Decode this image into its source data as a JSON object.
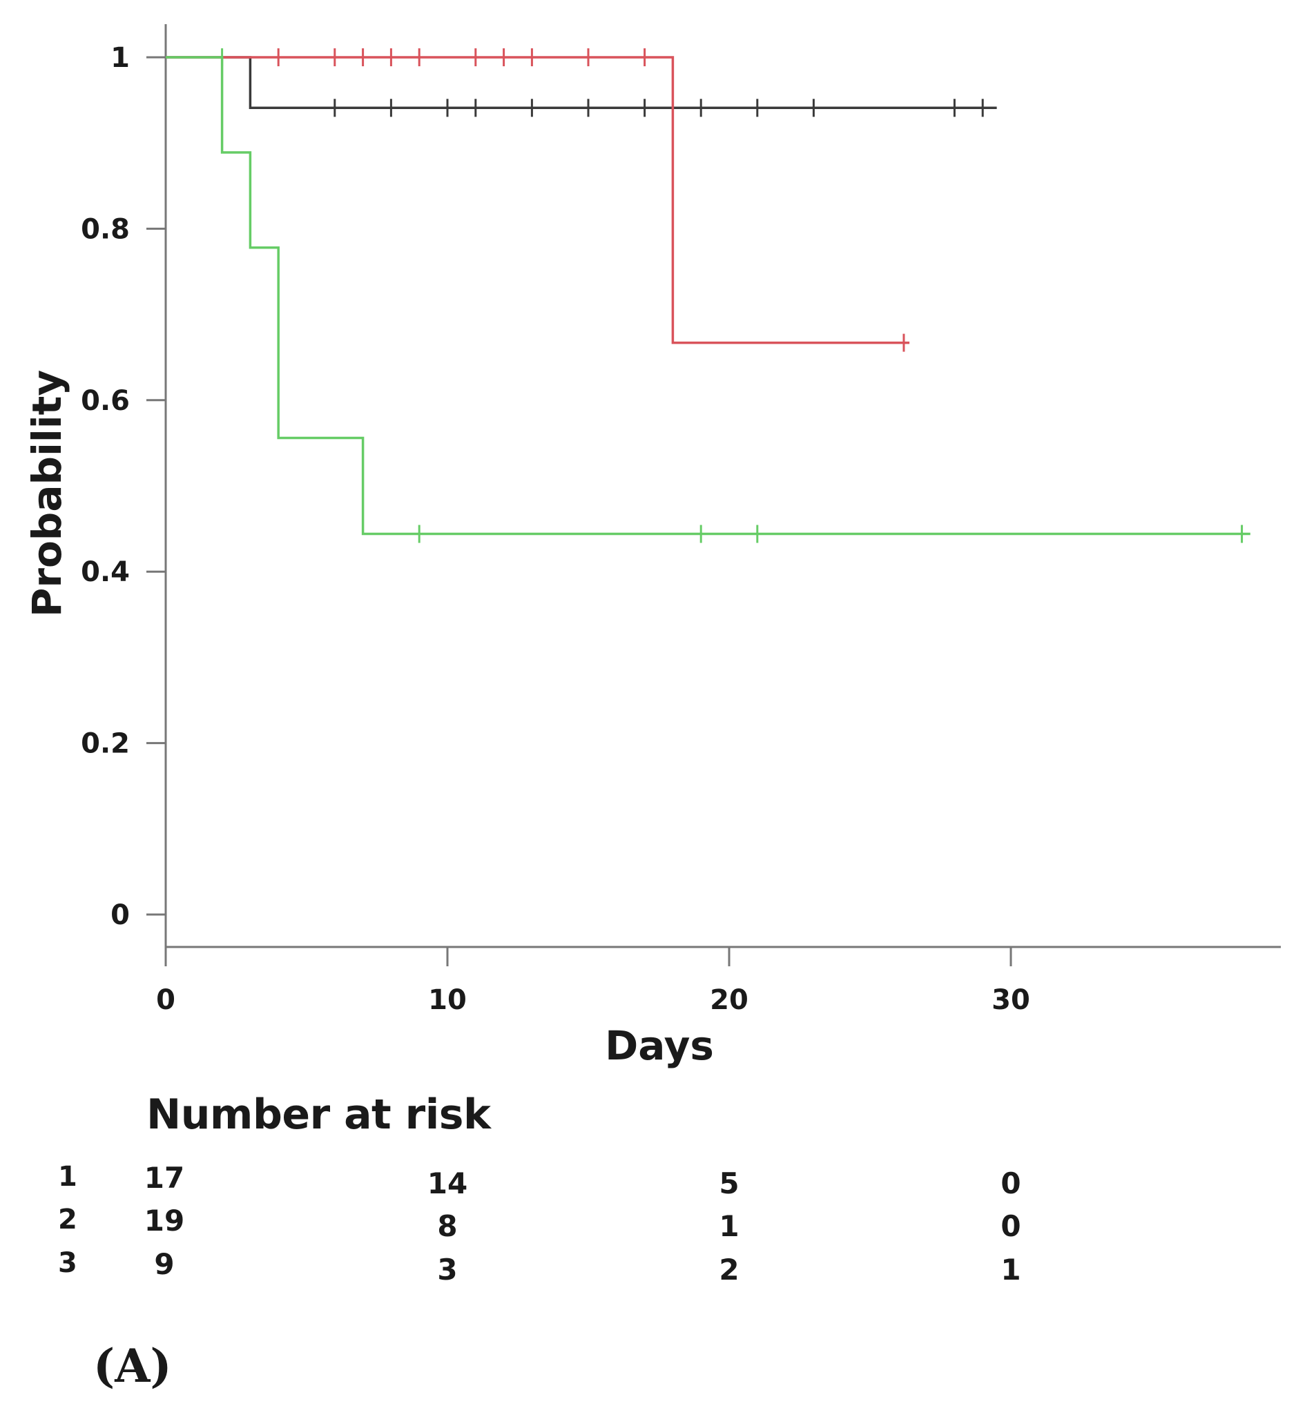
{
  "chart_data": {
    "type": "line",
    "subtype": "kaplan-meier step",
    "xlabel": "Days",
    "ylabel": "Probability",
    "xlim": [
      0,
      39
    ],
    "ylim": [
      0,
      1
    ],
    "x_ticks": [
      0,
      10,
      20,
      30
    ],
    "y_ticks": [
      0,
      0.2,
      0.4,
      0.6,
      0.8,
      1
    ],
    "x_tick_labels": [
      "0",
      "10",
      "20",
      "30"
    ],
    "y_tick_labels": [
      "0",
      "0.2",
      "0.4",
      "0.6",
      "0.8",
      "1"
    ],
    "grid": false,
    "series": [
      {
        "name": "1",
        "color": "#3a3a3a",
        "steps": [
          [
            0,
            1
          ],
          [
            3,
            0.941
          ],
          [
            29.5,
            0.941
          ]
        ],
        "censored": [
          [
            6,
            0.941
          ],
          [
            8,
            0.941
          ],
          [
            10,
            0.941
          ],
          [
            11,
            0.941
          ],
          [
            13,
            0.941
          ],
          [
            15,
            0.941
          ],
          [
            17,
            0.941
          ],
          [
            19,
            0.941
          ],
          [
            21,
            0.941
          ],
          [
            23,
            0.941
          ],
          [
            28,
            0.941
          ],
          [
            29,
            0.941
          ]
        ]
      },
      {
        "name": "2",
        "color": "#d9535b",
        "steps": [
          [
            0,
            1
          ],
          [
            18,
            0.667
          ],
          [
            26.4,
            0.667
          ]
        ],
        "censored": [
          [
            4,
            1
          ],
          [
            6,
            1
          ],
          [
            7,
            1
          ],
          [
            8,
            1
          ],
          [
            9,
            1
          ],
          [
            11,
            1
          ],
          [
            12,
            1
          ],
          [
            13,
            1
          ],
          [
            15,
            1
          ],
          [
            17,
            1
          ],
          [
            26.2,
            0.667
          ]
        ]
      },
      {
        "name": "3",
        "color": "#66cc66",
        "steps": [
          [
            0,
            1
          ],
          [
            2,
            0.889
          ],
          [
            3,
            0.778
          ],
          [
            4,
            0.556
          ],
          [
            7,
            0.444
          ],
          [
            38.5,
            0.444
          ]
        ],
        "censored": [
          [
            2,
            1
          ],
          [
            9,
            0.444
          ],
          [
            19,
            0.444
          ],
          [
            21,
            0.444
          ],
          [
            38.2,
            0.444
          ]
        ]
      }
    ],
    "risk_table": {
      "title": "Number at risk",
      "times": [
        0,
        10,
        20,
        30
      ],
      "rows": [
        {
          "label": "1",
          "counts": [
            "17",
            "14",
            "5",
            "0"
          ]
        },
        {
          "label": "2",
          "counts": [
            "19",
            "8",
            "1",
            "0"
          ]
        },
        {
          "label": "3",
          "counts": [
            "9",
            "3",
            "2",
            "1"
          ]
        }
      ]
    },
    "panel_label": "(A)"
  }
}
